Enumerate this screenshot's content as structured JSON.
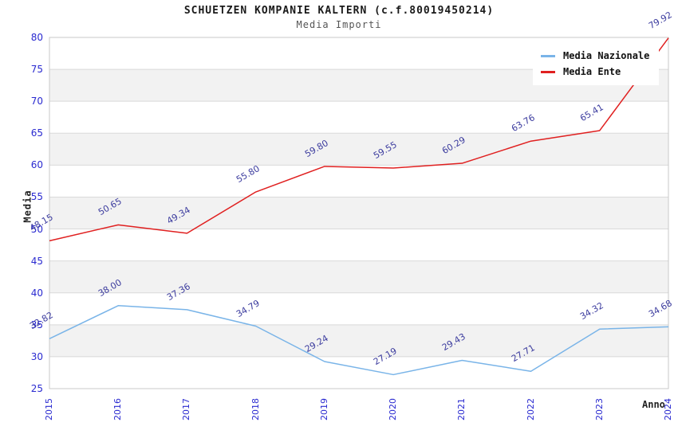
{
  "header": {
    "title": "SCHUETZEN KOMPANIE KALTERN (c.f.80019450214)",
    "subtitle": "Media Importi"
  },
  "chart_data": {
    "type": "line",
    "title": "SCHUETZEN KOMPANIE KALTERN (c.f.80019450214)",
    "subtitle": "Media Importi",
    "xlabel": "Anno",
    "ylabel": "Media",
    "x": [
      "2015",
      "2016",
      "2017",
      "2018",
      "2019",
      "2020",
      "2021",
      "2022",
      "2023",
      "2024"
    ],
    "series": [
      {
        "name": "Media Nazionale",
        "color": "#79b4e8",
        "values": [
          32.82,
          38.0,
          37.36,
          34.79,
          29.24,
          27.19,
          29.43,
          27.71,
          34.32,
          34.68
        ]
      },
      {
        "name": "Media Ente",
        "color": "#e02020",
        "values": [
          48.15,
          50.65,
          49.34,
          55.8,
          59.8,
          59.55,
          60.29,
          63.76,
          65.41,
          79.92
        ]
      }
    ],
    "ylim": [
      25,
      80
    ],
    "ytick_step": 5,
    "value_label_decimals": 2,
    "grid": "horizontal",
    "band_fill": "alternating-gray",
    "legend_position": "top-right"
  },
  "colors": {
    "tick_label": "#2a2ad0",
    "data_label": "#3b3b9e",
    "band_gray": "#f2f2f2",
    "gridline": "#d9d9d9",
    "plot_border": "#c9c9c9"
  }
}
